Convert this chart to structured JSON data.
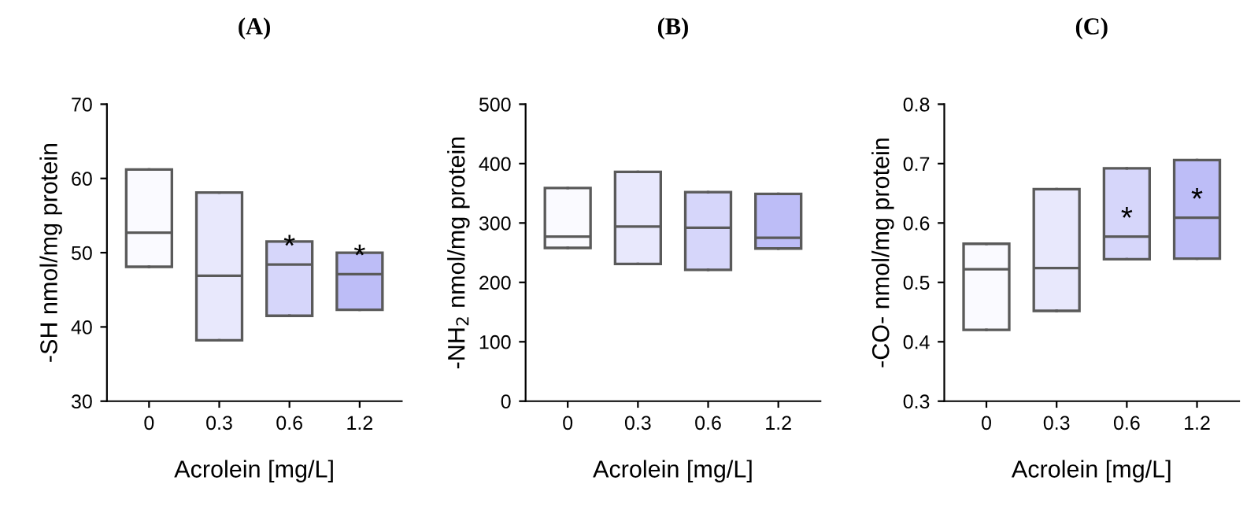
{
  "chart_data": [
    {
      "type": "box",
      "title": "(A)",
      "xlabel": "Acrolein [mg/L]",
      "ylabel": "-SH nmol/mg protein",
      "categories": [
        "0",
        "0.3",
        "0.6",
        "1.2"
      ],
      "boxes": [
        {
          "low": 48.1,
          "q1": 48.1,
          "median": 52.7,
          "q3": 61.2,
          "high": 61.2
        },
        {
          "low": 38.2,
          "q1": 38.2,
          "median": 46.9,
          "q3": 58.1,
          "high": 58.1
        },
        {
          "low": 41.5,
          "q1": 41.5,
          "median": 48.4,
          "q3": 51.5,
          "high": 51.5
        },
        {
          "low": 42.3,
          "q1": 42.3,
          "median": 47.1,
          "q3": 50.0,
          "high": 50.0
        }
      ],
      "colors": [
        "#fafaff",
        "#e8e8fc",
        "#d6d6fa",
        "#bdbdf7"
      ],
      "ylim": [
        30,
        70
      ],
      "yticks": [
        30,
        40,
        50,
        60,
        70
      ],
      "grid": false,
      "annotations": [
        {
          "text": "*",
          "x": "0.6",
          "y": 48.4
        },
        {
          "text": "*",
          "x": "1.2",
          "y": 47.1
        }
      ]
    },
    {
      "type": "box",
      "title": "(B)",
      "xlabel": "Acrolein [mg/L]",
      "ylabel": "-NH$_{2}$ nmol/mg protein",
      "categories": [
        "0",
        "0.3",
        "0.6",
        "1.2"
      ],
      "boxes": [
        {
          "low": 258,
          "q1": 258,
          "median": 277,
          "q3": 359,
          "high": 359
        },
        {
          "low": 231,
          "q1": 231,
          "median": 294,
          "q3": 386,
          "high": 386
        },
        {
          "low": 221,
          "q1": 221,
          "median": 292,
          "q3": 352,
          "high": 352
        },
        {
          "low": 257,
          "q1": 257,
          "median": 275,
          "q3": 349,
          "high": 349
        }
      ],
      "colors": [
        "#fafaff",
        "#e8e8fc",
        "#d6d6fa",
        "#bdbdf7"
      ],
      "ylim": [
        0,
        500
      ],
      "yticks": [
        0,
        100,
        200,
        300,
        400,
        500
      ],
      "grid": false
    },
    {
      "type": "box",
      "title": "(C)",
      "xlabel": "Acrolein [mg/L]",
      "ylabel": "-CO- nmol/mg protein",
      "categories": [
        "0",
        "0.3",
        "0.6",
        "1.2"
      ],
      "boxes": [
        {
          "low": 0.42,
          "q1": 0.42,
          "median": 0.522,
          "q3": 0.565,
          "high": 0.565
        },
        {
          "low": 0.452,
          "q1": 0.452,
          "median": 0.524,
          "q3": 0.657,
          "high": 0.657
        },
        {
          "low": 0.539,
          "q1": 0.539,
          "median": 0.577,
          "q3": 0.692,
          "high": 0.692
        },
        {
          "low": 0.54,
          "q1": 0.54,
          "median": 0.609,
          "q3": 0.706,
          "high": 0.706
        }
      ],
      "colors": [
        "#fafaff",
        "#e8e8fc",
        "#d6d6fa",
        "#bdbdf7"
      ],
      "ylim": [
        0.3,
        0.8
      ],
      "yticks": [
        0.3,
        0.4,
        0.5,
        0.6,
        0.7,
        0.8
      ],
      "grid": false,
      "annotations": [
        {
          "text": "*",
          "x": "0.6",
          "y": 0.577
        },
        {
          "text": "*",
          "x": "1.2",
          "y": 0.609
        }
      ]
    }
  ]
}
